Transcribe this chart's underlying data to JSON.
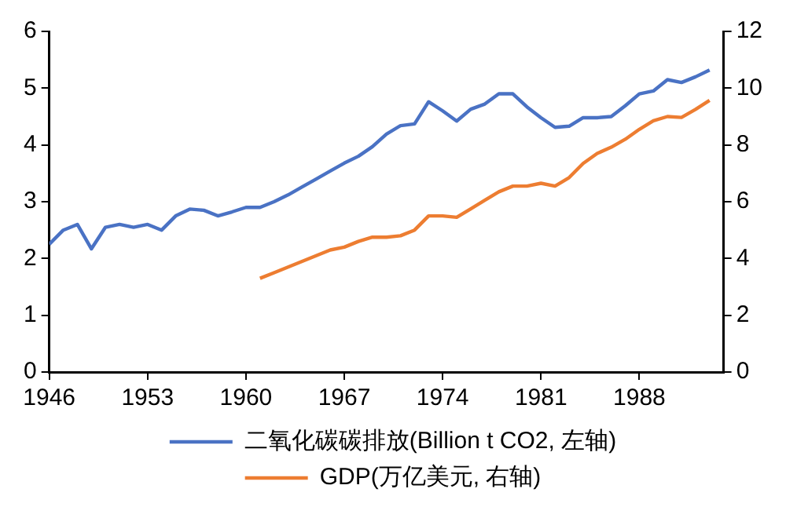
{
  "chart_data": {
    "type": "line",
    "x": [
      1946,
      1947,
      1948,
      1949,
      1950,
      1951,
      1952,
      1953,
      1954,
      1955,
      1956,
      1957,
      1958,
      1959,
      1960,
      1961,
      1962,
      1963,
      1964,
      1965,
      1966,
      1967,
      1968,
      1969,
      1970,
      1971,
      1972,
      1973,
      1974,
      1975,
      1976,
      1977,
      1978,
      1979,
      1980,
      1981,
      1982,
      1983,
      1984,
      1985,
      1986,
      1987,
      1988,
      1989,
      1990,
      1991,
      1992,
      1993
    ],
    "series": [
      {
        "name": "二氧化碳碳排放(Billion t CO2, 左轴)",
        "color": "#4a72c4",
        "values": [
          2.25,
          2.5,
          2.6,
          2.17,
          2.55,
          2.6,
          2.55,
          2.6,
          2.5,
          2.75,
          2.87,
          2.85,
          2.75,
          2.82,
          2.9,
          2.9,
          3.0,
          3.12,
          3.26,
          3.4,
          3.54,
          3.68,
          3.8,
          3.97,
          4.19,
          4.34,
          4.37,
          4.76,
          4.6,
          4.42,
          4.63,
          4.72,
          4.9,
          4.9,
          4.67,
          4.48,
          4.31,
          4.33,
          4.48,
          4.48,
          4.5,
          4.69,
          4.9,
          4.95,
          5.15,
          5.1,
          5.2,
          5.32
        ]
      },
      {
        "name": "GDP(万亿美元, 右轴)",
        "color": "#ed7d31",
        "axis": "y2",
        "values": [
          null,
          null,
          null,
          null,
          null,
          null,
          null,
          null,
          null,
          null,
          null,
          null,
          null,
          null,
          null,
          3.3,
          3.5,
          3.7,
          3.9,
          4.1,
          4.3,
          4.4,
          4.6,
          4.75,
          4.75,
          4.8,
          5.0,
          5.5,
          5.5,
          5.45,
          5.75,
          6.05,
          6.35,
          6.55,
          6.55,
          6.65,
          6.55,
          6.85,
          7.35,
          7.7,
          7.92,
          8.2,
          8.55,
          8.85,
          9.0,
          8.97,
          9.25,
          9.57
        ]
      }
    ],
    "xlim": [
      1946,
      1994
    ],
    "xticks": [
      1946,
      1953,
      1960,
      1967,
      1974,
      1981,
      1988
    ],
    "ylim": [
      0,
      6
    ],
    "yticks": [
      0,
      1,
      2,
      3,
      4,
      5,
      6
    ],
    "y2lim": [
      0,
      12
    ],
    "y2ticks": [
      0,
      2,
      4,
      6,
      8,
      10,
      12
    ],
    "grid": false,
    "legend": "bottom",
    "marker": "none",
    "line_style": "solid"
  }
}
